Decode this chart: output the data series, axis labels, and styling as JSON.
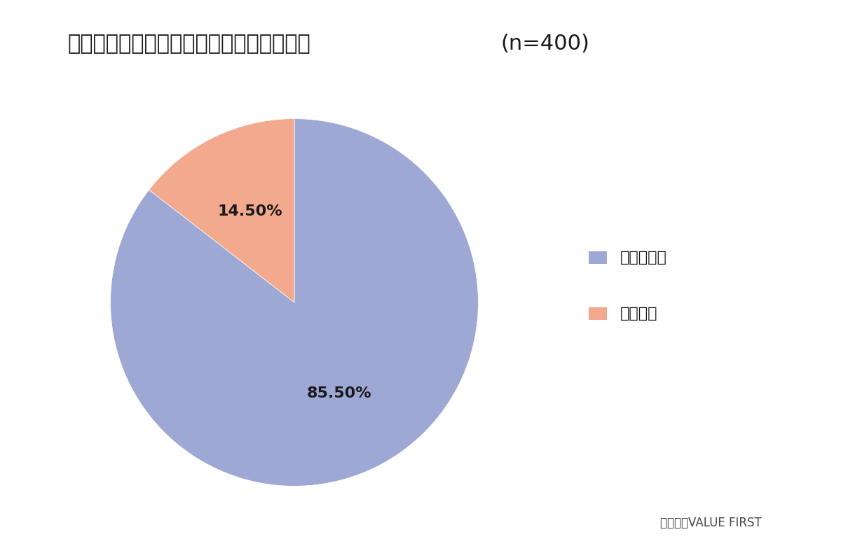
{
  "title": "定額減税が実施されたことを知っているか",
  "n_label": "(n=400)",
  "slices": [
    85.5,
    14.5
  ],
  "labels": [
    "知っている",
    "知らない"
  ],
  "colors": [
    "#9da8d4",
    "#f2a98e"
  ],
  "pct_labels": [
    "85.50%",
    "14.50%"
  ],
  "startangle": 90,
  "background_color": "#ffffff",
  "title_fontsize": 22,
  "legend_fontsize": 16,
  "pct_fontsize": 16,
  "footer_text": "株式会社VALUE FIRST",
  "footer_fontsize": 12
}
